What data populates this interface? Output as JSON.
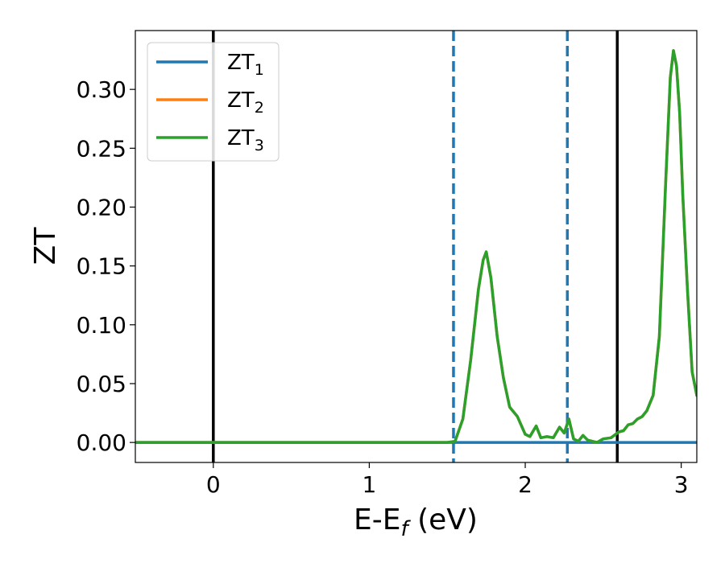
{
  "chart_data": {
    "type": "line",
    "xlabel": "E-E",
    "xlabel_sub": "f",
    "xlabel_unit": " (eV)",
    "ylabel": "ZT",
    "xlim": [
      -0.5,
      3.1
    ],
    "ylim": [
      -0.017,
      0.35
    ],
    "xticks": [
      0,
      1,
      2,
      3
    ],
    "yticks": [
      0.0,
      0.05,
      0.1,
      0.15,
      0.2,
      0.25,
      0.3
    ],
    "xtick_labels": [
      "0",
      "1",
      "2",
      "3"
    ],
    "ytick_labels": [
      "0.00",
      "0.05",
      "0.10",
      "0.15",
      "0.20",
      "0.25",
      "0.30"
    ],
    "grid": false,
    "legend_position": "top-left",
    "vertical_lines": [
      {
        "x": 0.0,
        "style": "solid",
        "color": "#000000"
      },
      {
        "x": 1.54,
        "style": "dashed",
        "color": "#1f77b4"
      },
      {
        "x": 2.27,
        "style": "dashed",
        "color": "#1f77b4"
      },
      {
        "x": 2.59,
        "style": "solid",
        "color": "#000000"
      }
    ],
    "series": [
      {
        "name": "ZT",
        "sub": "1",
        "color": "#1f77b4",
        "x": [
          -0.5,
          3.1
        ],
        "y": [
          0.0,
          0.0
        ]
      },
      {
        "name": "ZT",
        "sub": "2",
        "color": "#ff7f0e",
        "x": [
          -0.5,
          1.5,
          1.55,
          1.6,
          1.65,
          1.7,
          1.73,
          1.75,
          1.78,
          1.82,
          1.86,
          1.9,
          1.95,
          2.0,
          2.03,
          2.07,
          2.1,
          2.14,
          2.18,
          2.22,
          2.25,
          2.28,
          2.31,
          2.34,
          2.37,
          2.4,
          2.43,
          2.46,
          2.5,
          2.55,
          2.6,
          2.63,
          2.66,
          2.69,
          2.72,
          2.75,
          2.78,
          2.82,
          2.86,
          2.9,
          2.93,
          2.95,
          2.97,
          2.99,
          3.01,
          3.04,
          3.07,
          3.1
        ],
        "y": [
          0.0,
          0.0,
          0.001,
          0.02,
          0.07,
          0.13,
          0.155,
          0.162,
          0.14,
          0.09,
          0.055,
          0.03,
          0.022,
          0.007,
          0.005,
          0.014,
          0.004,
          0.005,
          0.004,
          0.013,
          0.008,
          0.02,
          0.003,
          0.001,
          0.006,
          0.002,
          0.001,
          0.0,
          0.003,
          0.004,
          0.009,
          0.01,
          0.015,
          0.016,
          0.02,
          0.022,
          0.027,
          0.04,
          0.09,
          0.22,
          0.31,
          0.333,
          0.32,
          0.28,
          0.21,
          0.13,
          0.06,
          0.04
        ]
      },
      {
        "name": "ZT",
        "sub": "3",
        "color": "#2ca02c",
        "x": [
          -0.5,
          1.5,
          1.55,
          1.6,
          1.65,
          1.7,
          1.73,
          1.75,
          1.78,
          1.82,
          1.86,
          1.9,
          1.95,
          2.0,
          2.03,
          2.07,
          2.1,
          2.14,
          2.18,
          2.22,
          2.25,
          2.28,
          2.31,
          2.34,
          2.37,
          2.4,
          2.43,
          2.46,
          2.5,
          2.55,
          2.6,
          2.63,
          2.66,
          2.69,
          2.72,
          2.75,
          2.78,
          2.82,
          2.86,
          2.9,
          2.93,
          2.95,
          2.97,
          2.99,
          3.01,
          3.04,
          3.07,
          3.1
        ],
        "y": [
          0.0,
          0.0,
          0.001,
          0.02,
          0.07,
          0.13,
          0.155,
          0.162,
          0.14,
          0.09,
          0.055,
          0.03,
          0.022,
          0.007,
          0.005,
          0.014,
          0.004,
          0.005,
          0.004,
          0.013,
          0.008,
          0.02,
          0.003,
          0.001,
          0.006,
          0.002,
          0.001,
          0.0,
          0.003,
          0.004,
          0.009,
          0.01,
          0.015,
          0.016,
          0.02,
          0.022,
          0.027,
          0.04,
          0.09,
          0.22,
          0.31,
          0.333,
          0.32,
          0.28,
          0.21,
          0.13,
          0.06,
          0.04
        ]
      }
    ]
  }
}
